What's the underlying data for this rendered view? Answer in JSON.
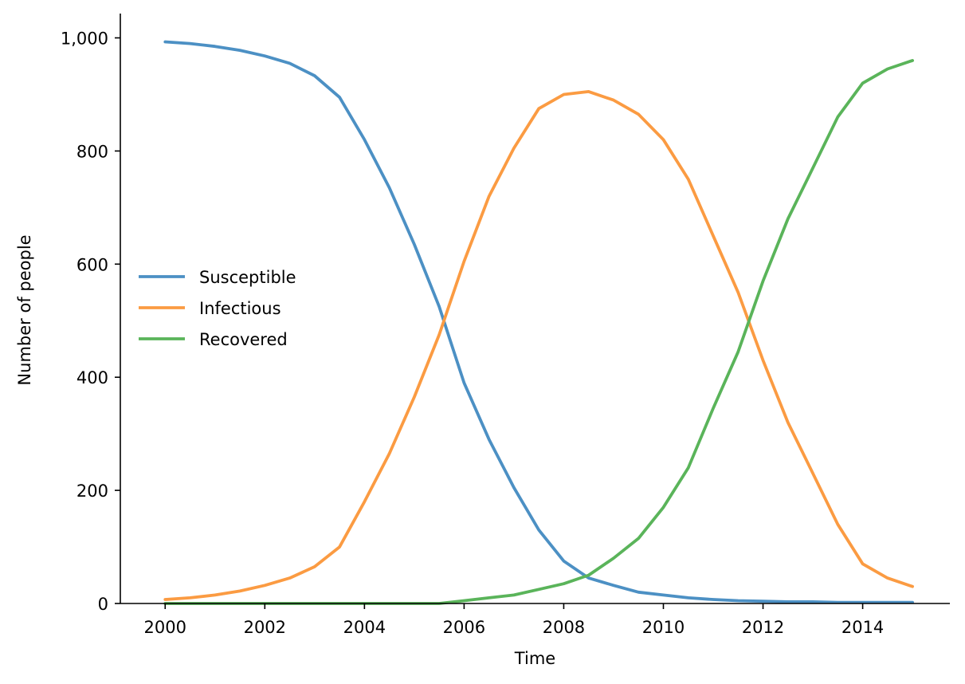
{
  "chart_data": {
    "type": "line",
    "title": "",
    "xlabel": "Time",
    "ylabel": "Number of people",
    "xlim": [
      1999.1,
      2015.75
    ],
    "ylim": [
      0,
      1043
    ],
    "x_ticks": [
      2000,
      2002,
      2004,
      2006,
      2008,
      2010,
      2012,
      2014
    ],
    "x_tick_labels": [
      "2000",
      "2002",
      "2004",
      "2006",
      "2008",
      "2010",
      "2012",
      "2014"
    ],
    "y_ticks": [
      0,
      200,
      400,
      600,
      800,
      1000
    ],
    "y_tick_labels": [
      "0",
      "200",
      "400",
      "600",
      "800",
      "1,000"
    ],
    "grid": false,
    "legend_position": "center-left",
    "x": [
      2000,
      2000.5,
      2001,
      2001.5,
      2002,
      2002.5,
      2003,
      2003.5,
      2004,
      2004.5,
      2005,
      2005.5,
      2006,
      2006.5,
      2007,
      2007.5,
      2008,
      2008.5,
      2009,
      2009.5,
      2010,
      2010.5,
      2011,
      2011.5,
      2012,
      2012.5,
      2013,
      2013.5,
      2014,
      2014.5,
      2015
    ],
    "series": [
      {
        "name": "Susceptible",
        "color": "#4c90c4",
        "values": [
          993,
          990,
          985,
          978,
          968,
          955,
          933,
          895,
          820,
          735,
          635,
          525,
          390,
          290,
          205,
          130,
          75,
          45,
          32,
          20,
          15,
          10,
          7,
          5,
          4,
          3,
          3,
          2,
          2,
          2,
          2
        ]
      },
      {
        "name": "Infectious",
        "color": "#fb9b42",
        "values": [
          7,
          10,
          15,
          22,
          32,
          45,
          65,
          100,
          180,
          265,
          365,
          475,
          605,
          720,
          805,
          875,
          900,
          905,
          890,
          865,
          820,
          750,
          650,
          550,
          430,
          320,
          230,
          140,
          70,
          45,
          30
        ]
      },
      {
        "name": "Recovered",
        "color": "#5ab45a",
        "values": [
          0,
          0,
          0,
          0,
          0,
          0,
          0,
          0,
          0,
          0,
          0,
          0,
          5,
          10,
          15,
          25,
          35,
          50,
          80,
          115,
          170,
          240,
          345,
          445,
          570,
          680,
          770,
          860,
          920,
          945,
          960
        ]
      }
    ]
  }
}
